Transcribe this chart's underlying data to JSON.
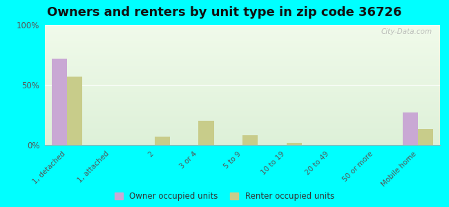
{
  "title": "Owners and renters by unit type in zip code 36726",
  "categories": [
    "1, detached",
    "1, attached",
    "2",
    "3 or 4",
    "5 to 9",
    "10 to 19",
    "20 to 49",
    "50 or more",
    "Mobile home"
  ],
  "owner_values": [
    72,
    0,
    0,
    0,
    0,
    0,
    0,
    0,
    27
  ],
  "renter_values": [
    57,
    0,
    7,
    20,
    8,
    2,
    0,
    0,
    13
  ],
  "owner_color": "#c9a8d4",
  "renter_color": "#c8cc8a",
  "background_color": "#00ffff",
  "plot_bg_top": "#ddf0d8",
  "plot_bg_bottom": "#f0faea",
  "ylim": [
    0,
    100
  ],
  "yticks": [
    0,
    50,
    100
  ],
  "ytick_labels": [
    "0%",
    "50%",
    "100%"
  ],
  "title_fontsize": 13,
  "legend_labels": [
    "Owner occupied units",
    "Renter occupied units"
  ],
  "watermark": "City-Data.com"
}
